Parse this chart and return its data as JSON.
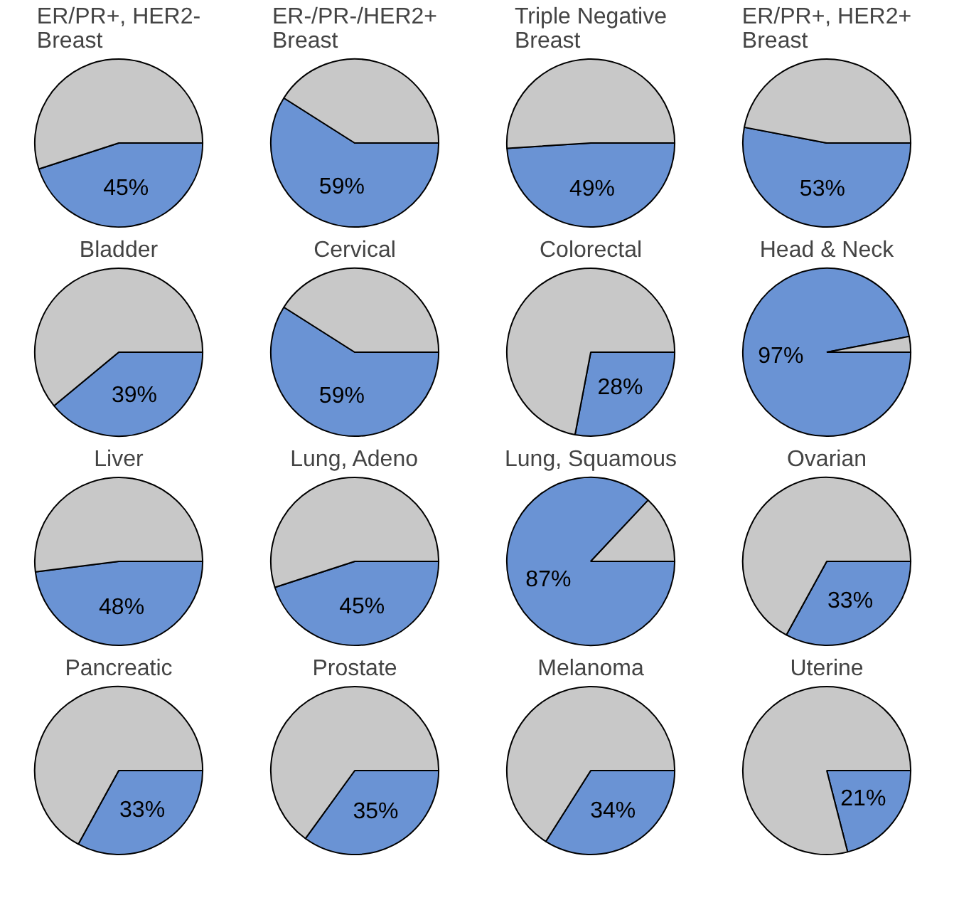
{
  "chart_data": [
    {
      "type": "pie",
      "title": "ER/PR+, HER2-\nBreast",
      "categories": [
        null,
        null
      ],
      "values": [
        45,
        55
      ],
      "colors": [
        "#6a93d4",
        "#c8c8c8"
      ],
      "value_labels": [
        "45%",
        null
      ]
    },
    {
      "type": "pie",
      "title": "ER-/PR-/HER2+\nBreast",
      "categories": [
        null,
        null
      ],
      "values": [
        59,
        41
      ],
      "colors": [
        "#6a93d4",
        "#c8c8c8"
      ],
      "value_labels": [
        "59%",
        null
      ]
    },
    {
      "type": "pie",
      "title": "Triple Negative\nBreast",
      "categories": [
        null,
        null
      ],
      "values": [
        49,
        51
      ],
      "colors": [
        "#6a93d4",
        "#c8c8c8"
      ],
      "value_labels": [
        "49%",
        null
      ]
    },
    {
      "type": "pie",
      "title": "ER/PR+, HER2+\nBreast",
      "categories": [
        null,
        null
      ],
      "values": [
        53,
        47
      ],
      "colors": [
        "#6a93d4",
        "#c8c8c8"
      ],
      "value_labels": [
        "53%",
        null
      ]
    },
    {
      "type": "pie",
      "title": "Bladder",
      "categories": [
        null,
        null
      ],
      "values": [
        39,
        61
      ],
      "colors": [
        "#6a93d4",
        "#c8c8c8"
      ],
      "value_labels": [
        "39%",
        null
      ]
    },
    {
      "type": "pie",
      "title": "Cervical",
      "categories": [
        null,
        null
      ],
      "values": [
        59,
        41
      ],
      "colors": [
        "#6a93d4",
        "#c8c8c8"
      ],
      "value_labels": [
        "59%",
        null
      ]
    },
    {
      "type": "pie",
      "title": "Colorectal",
      "categories": [
        null,
        null
      ],
      "values": [
        28,
        72
      ],
      "colors": [
        "#6a93d4",
        "#c8c8c8"
      ],
      "value_labels": [
        "28%",
        null
      ]
    },
    {
      "type": "pie",
      "title": "Head & Neck",
      "categories": [
        null,
        null
      ],
      "values": [
        97,
        3
      ],
      "colors": [
        "#6a93d4",
        "#c8c8c8"
      ],
      "value_labels": [
        "97%",
        null
      ]
    },
    {
      "type": "pie",
      "title": "Liver",
      "categories": [
        null,
        null
      ],
      "values": [
        48,
        52
      ],
      "colors": [
        "#6a93d4",
        "#c8c8c8"
      ],
      "value_labels": [
        "48%",
        null
      ]
    },
    {
      "type": "pie",
      "title": "Lung, Adeno",
      "categories": [
        null,
        null
      ],
      "values": [
        45,
        55
      ],
      "colors": [
        "#6a93d4",
        "#c8c8c8"
      ],
      "value_labels": [
        "45%",
        null
      ]
    },
    {
      "type": "pie",
      "title": "Lung, Squamous",
      "categories": [
        null,
        null
      ],
      "values": [
        87,
        13
      ],
      "colors": [
        "#6a93d4",
        "#c8c8c8"
      ],
      "value_labels": [
        "87%",
        null
      ]
    },
    {
      "type": "pie",
      "title": "Ovarian",
      "categories": [
        null,
        null
      ],
      "values": [
        33,
        67
      ],
      "colors": [
        "#6a93d4",
        "#c8c8c8"
      ],
      "value_labels": [
        "33%",
        null
      ]
    },
    {
      "type": "pie",
      "title": "Pancreatic",
      "categories": [
        null,
        null
      ],
      "values": [
        33,
        67
      ],
      "colors": [
        "#6a93d4",
        "#c8c8c8"
      ],
      "value_labels": [
        "33%",
        null
      ]
    },
    {
      "type": "pie",
      "title": "Prostate",
      "categories": [
        null,
        null
      ],
      "values": [
        35,
        65
      ],
      "colors": [
        "#6a93d4",
        "#c8c8c8"
      ],
      "value_labels": [
        "35%",
        null
      ]
    },
    {
      "type": "pie",
      "title": "Melanoma",
      "categories": [
        null,
        null
      ],
      "values": [
        34,
        66
      ],
      "colors": [
        "#6a93d4",
        "#c8c8c8"
      ],
      "value_labels": [
        "34%",
        null
      ]
    },
    {
      "type": "pie",
      "title": "Uterine",
      "categories": [
        null,
        null
      ],
      "values": [
        21,
        79
      ],
      "colors": [
        "#6a93d4",
        "#c8c8c8"
      ],
      "value_labels": [
        "21%",
        null
      ]
    }
  ]
}
